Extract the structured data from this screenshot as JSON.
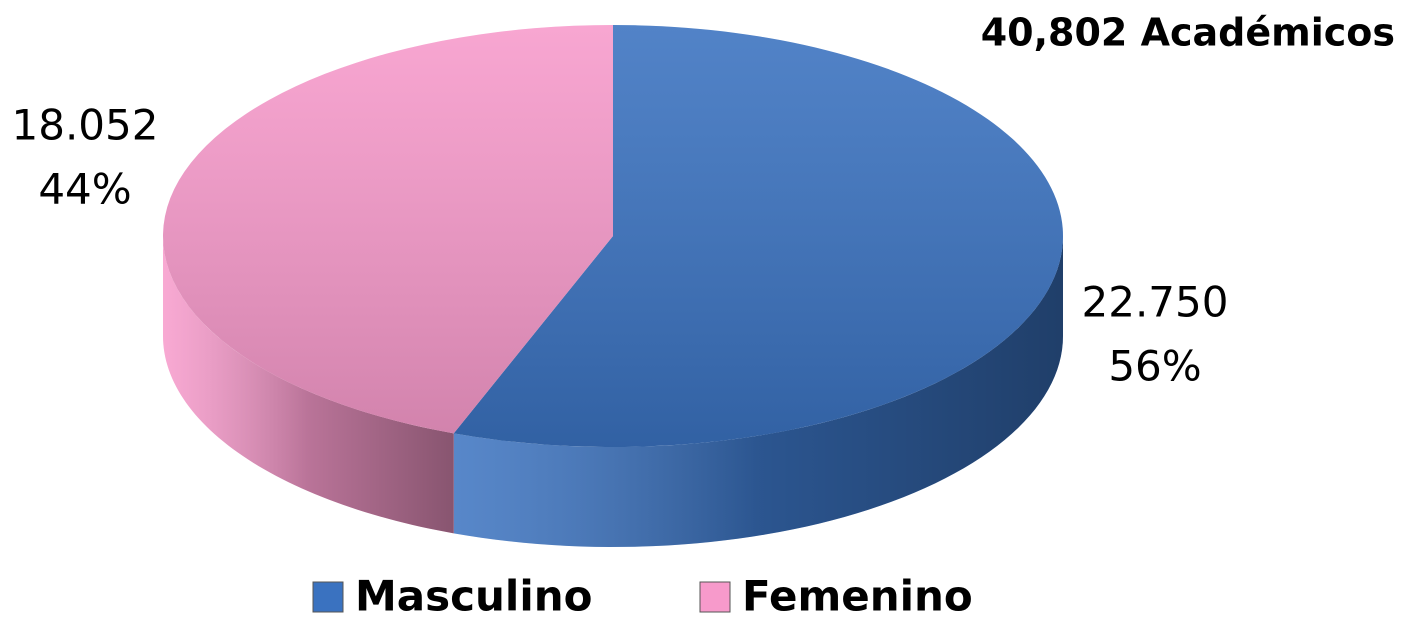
{
  "chart_data": {
    "type": "pie",
    "title": "40,802 Académicos",
    "categories": [
      "Masculino",
      "Femenino"
    ],
    "values": [
      22750,
      18052
    ],
    "value_labels": [
      "22.750",
      "18.052"
    ],
    "percents": [
      56,
      44
    ],
    "percent_labels": [
      "56%",
      "44%"
    ],
    "colors": [
      "#3a72c0",
      "#f79acb"
    ],
    "legend": "bottom"
  }
}
